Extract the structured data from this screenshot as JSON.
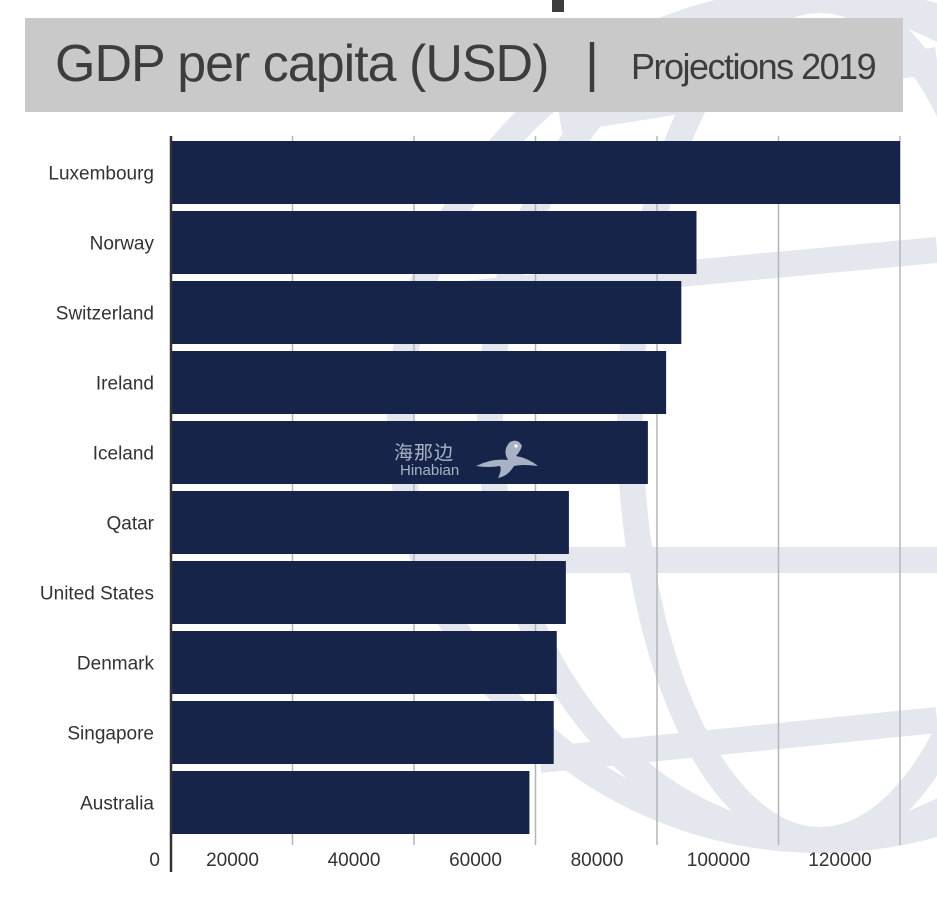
{
  "header": {
    "title": "GDP per capita (USD)",
    "separator": "|",
    "subtitle": "Projections 2019"
  },
  "watermark": {
    "brand_cn": "海那边",
    "brand_en": "Hinabian"
  },
  "colors": {
    "bar": "#16244a",
    "banner": "#c9c9c9",
    "grid": "#b5b5b5",
    "globe": "#e6e8ee"
  },
  "chart_data": {
    "type": "bar",
    "orientation": "horizontal",
    "title": "GDP per capita (USD)",
    "subtitle": "Projections 2019",
    "categories": [
      "Luxembourg",
      "Norway",
      "Switzerland",
      "Ireland",
      "Iceland",
      "Qatar",
      "United States",
      "Denmark",
      "Singapore",
      "Australia"
    ],
    "values": [
      120000,
      86500,
      84000,
      81500,
      78500,
      65500,
      65000,
      63500,
      63000,
      59000
    ],
    "xlim": [
      0,
      120000
    ],
    "xticks": [
      "0",
      "20000",
      "40000",
      "60000",
      "80000",
      "100000",
      "120000"
    ],
    "grid": "vertical"
  }
}
